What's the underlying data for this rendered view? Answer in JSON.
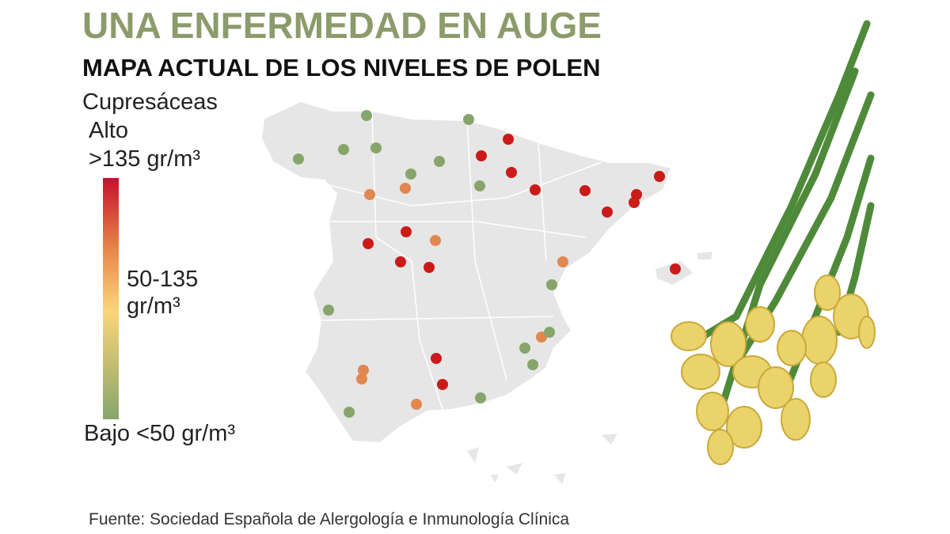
{
  "header": {
    "title": "UNA ENFERMEDAD EN AUGE",
    "subtitle": "MAPA ACTUAL DE LOS NIVELES DE POLEN"
  },
  "legend": {
    "title": "Cupresáceas",
    "high": "Alto",
    "high_range": ">135 gr/m³",
    "mid_range": "50-135 gr/m³",
    "low": "Bajo <50 gr/m³"
  },
  "source": "Fuente: Sociedad Española de Alergología e Inmunología Clínica"
}
